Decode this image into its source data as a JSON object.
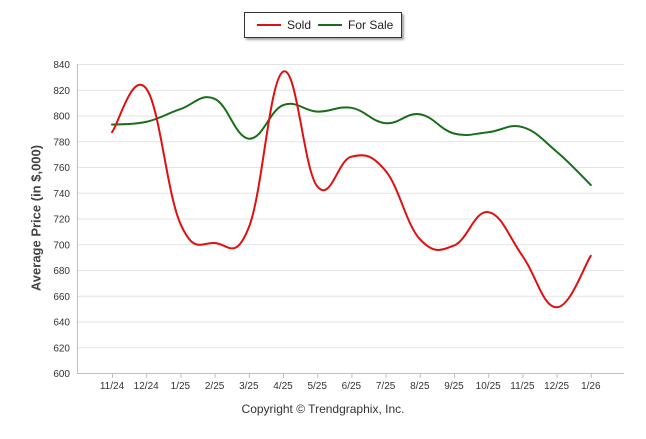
{
  "chart_data": {
    "type": "line",
    "title": "",
    "xlabel": "",
    "ylabel": "Average Price (in $,000)",
    "categories": [
      "11/24",
      "12/24",
      "1/25",
      "2/25",
      "3/25",
      "4/25",
      "5/25",
      "6/25",
      "7/25",
      "8/25",
      "9/25",
      "10/25",
      "11/25",
      "12/25",
      "1/26"
    ],
    "ylim": [
      600,
      840
    ],
    "yticks": [
      600,
      620,
      640,
      660,
      680,
      700,
      720,
      740,
      760,
      780,
      800,
      820,
      840
    ],
    "series": [
      {
        "name": "Sold",
        "color": "#e01010",
        "values": [
          787,
          821,
          716,
          701,
          713,
          834,
          745,
          768,
          757,
          704,
          699,
          725,
          691,
          651,
          691
        ]
      },
      {
        "name": "For Sale",
        "color": "#1a6e1a",
        "values": [
          793,
          795,
          805,
          813,
          782,
          808,
          803,
          806,
          794,
          801,
          786,
          787,
          791,
          772,
          746
        ]
      }
    ],
    "legend_position": "top-center",
    "grid": true
  },
  "credit": "Copyright © Trendgraphix, Inc."
}
